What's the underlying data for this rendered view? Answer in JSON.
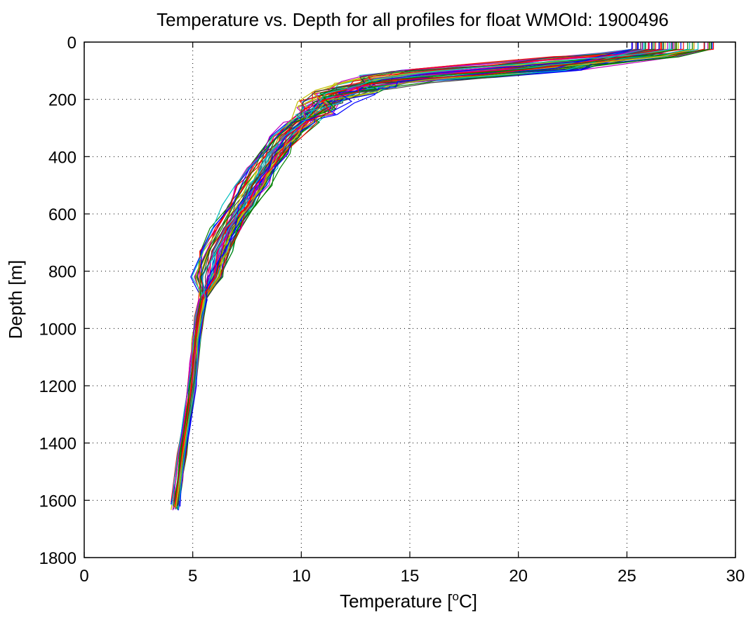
{
  "figure": {
    "title": "Temperature vs. Depth for all profiles for float WMOId: 1900496",
    "xlabel_main": "Temperature [",
    "xlabel_sup": "o",
    "xlabel_end": "C]",
    "ylabel": "Depth [m]"
  },
  "chart_data": {
    "type": "line",
    "title": "Temperature vs. Depth for all profiles for float WMOId: 1900496",
    "xlabel": "Temperature [oC]",
    "ylabel": "Depth [m]",
    "xlim": [
      0,
      30
    ],
    "ylim": [
      0,
      1800
    ],
    "y_reversed": true,
    "grid": true,
    "xticks": [
      "0",
      "5",
      "10",
      "15",
      "20",
      "25",
      "30"
    ],
    "yticks": [
      "0",
      "200",
      "400",
      "600",
      "800",
      "1000",
      "1200",
      "1400",
      "1600",
      "1800"
    ],
    "xtick_values": [
      0,
      5,
      10,
      15,
      20,
      25,
      30
    ],
    "ytick_values": [
      0,
      200,
      400,
      600,
      800,
      1000,
      1200,
      1400,
      1600,
      1800
    ],
    "profile_count": 60,
    "colors": [
      "#0000ff",
      "#008000",
      "#ff0000",
      "#00bfbf",
      "#bf00bf",
      "#bfbf00",
      "#404040"
    ],
    "representative_profile": {
      "temperature": [
        28.0,
        28.0,
        26.5,
        22.0,
        18.0,
        15.0,
        13.5,
        12.5,
        11.5,
        10.7,
        10.0,
        9.3,
        8.7,
        8.3,
        7.8,
        7.2,
        6.6,
        6.1,
        5.7,
        5.45,
        5.3,
        5.15,
        5.05,
        4.95,
        4.8,
        4.65,
        4.5,
        4.35,
        4.2
      ],
      "depth": [
        0,
        25,
        45,
        75,
        100,
        120,
        140,
        160,
        190,
        230,
        280,
        330,
        390,
        440,
        500,
        570,
        650,
        730,
        820,
        900,
        960,
        1040,
        1120,
        1200,
        1280,
        1360,
        1440,
        1530,
        1630
      ]
    }
  }
}
